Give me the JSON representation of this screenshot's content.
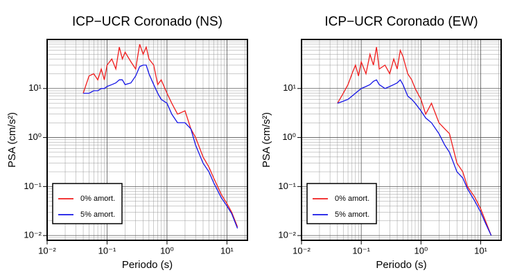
{
  "chart_data": [
    {
      "type": "line",
      "title": "ICP−UCR Coronado (NS)",
      "x_label": "Periodo (s)",
      "y_label": "PSA (cm/s²)",
      "x_log": true,
      "y_log": true,
      "grid": true,
      "legend": "lower left",
      "xlim": [
        0.01,
        22
      ],
      "ylim": [
        0.008,
        100
      ],
      "xticks": [
        {
          "value": 0.01,
          "label": "10⁻²"
        },
        {
          "value": 0.1,
          "label": "10⁻¹"
        },
        {
          "value": 1,
          "label": "10⁰"
        },
        {
          "value": 10,
          "label": "10¹"
        }
      ],
      "yticks": [
        {
          "value": 0.01,
          "label": "10⁻²"
        },
        {
          "value": 0.1,
          "label": "10⁻¹"
        },
        {
          "value": 1,
          "label": "10⁰"
        },
        {
          "value": 10,
          "label": "10¹"
        }
      ],
      "x": [
        0.04,
        0.05,
        0.06,
        0.07,
        0.08,
        0.09,
        0.1,
        0.12,
        0.14,
        0.16,
        0.18,
        0.2,
        0.25,
        0.3,
        0.35,
        0.4,
        0.45,
        0.5,
        0.6,
        0.7,
        0.8,
        1.0,
        1.2,
        1.5,
        2,
        2.5,
        3,
        4,
        5,
        6,
        8,
        10,
        12,
        15
      ],
      "series": [
        {
          "name": "0% amort.",
          "color": "#f01c1c",
          "values": [
            8,
            18,
            20,
            15,
            25,
            15,
            30,
            40,
            25,
            70,
            40,
            55,
            35,
            25,
            80,
            50,
            70,
            40,
            30,
            12,
            15,
            8,
            5,
            3,
            3.5,
            1.5,
            1,
            0.4,
            0.25,
            0.15,
            0.07,
            0.045,
            0.03,
            0.015
          ]
        },
        {
          "name": "5% amort.",
          "color": "#1414e6",
          "values": [
            8,
            8,
            9,
            9,
            10,
            10,
            11,
            12,
            13,
            15,
            15,
            12,
            13,
            18,
            28,
            30,
            30,
            20,
            12,
            8,
            6,
            5,
            3,
            2,
            2,
            1.5,
            0.7,
            0.3,
            0.2,
            0.12,
            0.06,
            0.04,
            0.028,
            0.014
          ]
        }
      ]
    },
    {
      "type": "line",
      "title": "ICP−UCR Coronado (EW)",
      "x_label": "Periodo (s)",
      "y_label": "PSA (cm/s²)",
      "x_log": true,
      "y_log": true,
      "grid": true,
      "legend": "lower left",
      "xlim": [
        0.01,
        22
      ],
      "ylim": [
        0.008,
        100
      ],
      "xticks": [
        {
          "value": 0.01,
          "label": "10⁻²"
        },
        {
          "value": 0.1,
          "label": "10⁻¹"
        },
        {
          "value": 1,
          "label": "10⁰"
        },
        {
          "value": 10,
          "label": "10¹"
        }
      ],
      "yticks": [
        {
          "value": 0.01,
          "label": "10⁻²"
        },
        {
          "value": 0.1,
          "label": "10⁻¹"
        },
        {
          "value": 1,
          "label": "10⁰"
        },
        {
          "value": 10,
          "label": "10¹"
        }
      ],
      "x": [
        0.04,
        0.05,
        0.06,
        0.07,
        0.08,
        0.09,
        0.1,
        0.12,
        0.14,
        0.16,
        0.18,
        0.2,
        0.25,
        0.3,
        0.35,
        0.4,
        0.45,
        0.5,
        0.6,
        0.7,
        0.8,
        1.0,
        1.2,
        1.5,
        2,
        2.5,
        3,
        4,
        5,
        6,
        8,
        10,
        12,
        15
      ],
      "series": [
        {
          "name": "0% amort.",
          "color": "#f01c1c",
          "values": [
            5,
            8,
            12,
            20,
            30,
            18,
            35,
            20,
            50,
            30,
            70,
            25,
            30,
            20,
            40,
            25,
            60,
            45,
            20,
            15,
            10,
            6,
            3,
            5,
            2,
            1.5,
            1.2,
            0.3,
            0.2,
            0.1,
            0.06,
            0.035,
            0.02,
            0.01
          ]
        },
        {
          "name": "5% amort.",
          "color": "#1414e6",
          "values": [
            5,
            5.5,
            6,
            7,
            8,
            9,
            10,
            11,
            12,
            14,
            15,
            12,
            10,
            11,
            12,
            13,
            15,
            12,
            7,
            6,
            5,
            3.5,
            2.5,
            2,
            1.2,
            0.7,
            0.5,
            0.2,
            0.15,
            0.09,
            0.05,
            0.03,
            0.018,
            0.01
          ]
        }
      ]
    }
  ]
}
